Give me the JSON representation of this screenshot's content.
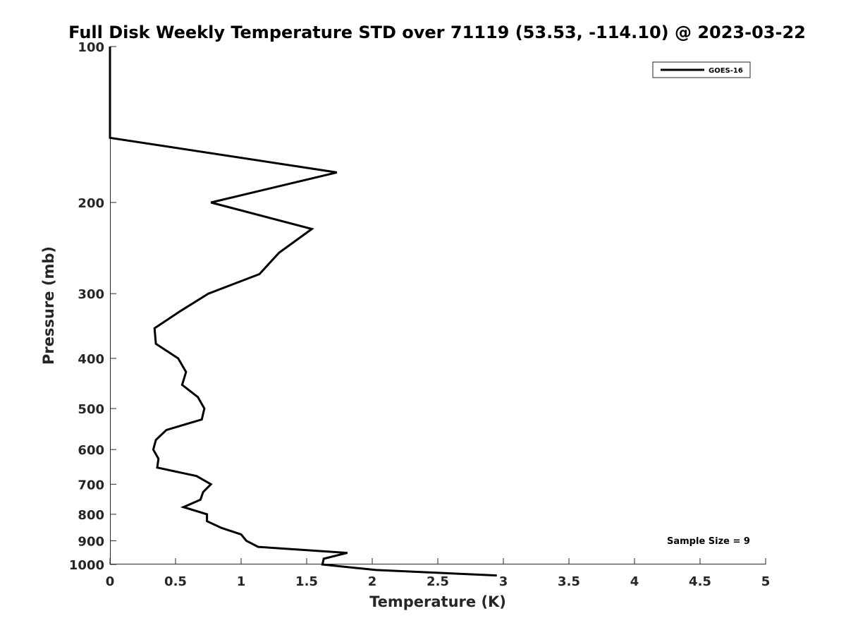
{
  "chart_data": {
    "type": "line",
    "title": "Full Disk Weekly Temperature STD over 71119 (53.53, -114.10) @ 2023-03-22",
    "xlabel": "Temperature (K)",
    "ylabel": "Pressure (mb)",
    "xlim": [
      0,
      5
    ],
    "ylim": [
      100,
      1000
    ],
    "y_scale": "log",
    "y_reversed": true,
    "grid": false,
    "x_ticks": [
      0,
      0.5,
      1,
      1.5,
      2,
      2.5,
      3,
      3.5,
      4,
      4.5,
      5
    ],
    "x_tick_labels": [
      "0",
      "0.5",
      "1",
      "1.5",
      "2",
      "2.5",
      "3",
      "3.5",
      "4",
      "4.5",
      "5"
    ],
    "y_ticks": [
      100,
      200,
      300,
      400,
      500,
      600,
      700,
      800,
      900,
      1000
    ],
    "y_tick_labels": [
      "100",
      "200",
      "300",
      "400",
      "500",
      "600",
      "700",
      "800",
      "900",
      "1000"
    ],
    "legend_position": "top-right",
    "series": [
      {
        "name": "GOES-16",
        "color": "#000000",
        "points": [
          [
            0,
            100
          ],
          [
            0,
            150
          ],
          [
            1.73,
            175
          ],
          [
            0.77,
            200
          ],
          [
            1.54,
            225
          ],
          [
            1.29,
            250
          ],
          [
            1.14,
            275
          ],
          [
            0.75,
            300
          ],
          [
            0.53,
            325
          ],
          [
            0.34,
            350
          ],
          [
            0.35,
            375
          ],
          [
            0.52,
            400
          ],
          [
            0.58,
            425
          ],
          [
            0.55,
            450
          ],
          [
            0.67,
            475
          ],
          [
            0.72,
            500
          ],
          [
            0.7,
            525
          ],
          [
            0.43,
            550
          ],
          [
            0.35,
            575
          ],
          [
            0.33,
            600
          ],
          [
            0.37,
            625
          ],
          [
            0.36,
            650
          ],
          [
            0.66,
            675
          ],
          [
            0.77,
            700
          ],
          [
            0.71,
            725
          ],
          [
            0.69,
            750
          ],
          [
            0.56,
            775
          ],
          [
            0.74,
            800
          ],
          [
            0.74,
            825
          ],
          [
            0.85,
            850
          ],
          [
            1.0,
            875
          ],
          [
            1.04,
            900
          ],
          [
            1.13,
            925
          ],
          [
            1.81,
            950
          ],
          [
            1.63,
            975
          ],
          [
            1.62,
            1000
          ],
          [
            2.03,
            1025
          ],
          [
            2.95,
            1050
          ]
        ]
      }
    ],
    "annotations": [
      {
        "text": "Sample Size = 9"
      }
    ]
  },
  "colors": {
    "line": "#000000",
    "axis": "#262626",
    "background": "#ffffff"
  }
}
